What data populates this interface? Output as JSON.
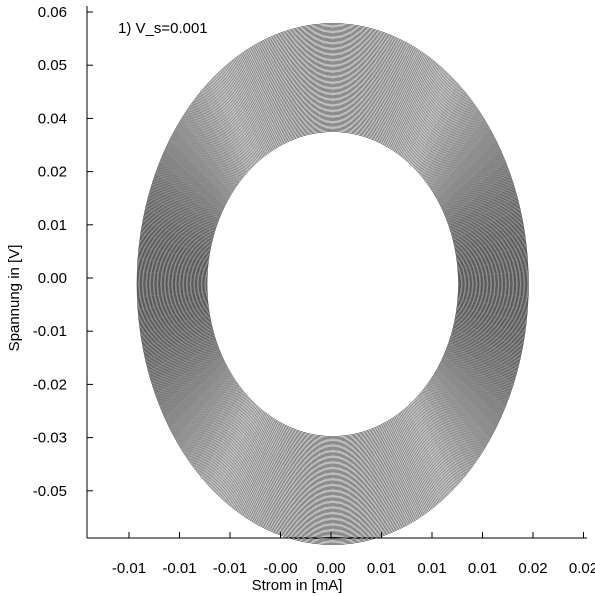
{
  "chart_data": {
    "type": "line",
    "annotation": "1) V_s=0.001",
    "xlabel": "Strom in [mA]",
    "ylabel": "Spannung in [V]",
    "x_tick_labels": [
      "-0.01",
      "-0.01",
      "-0.01",
      "-0.00",
      "0.00",
      "0.01",
      "0.01",
      "0.01",
      "0.02",
      "0.02"
    ],
    "y_tick_labels": [
      "0.06",
      "0.05",
      "0.04",
      "0.02",
      "0.01",
      "0.00",
      "-0.01",
      "-0.02",
      "-0.03",
      "-0.05"
    ],
    "xlim": [
      -0.0175,
      0.0175
    ],
    "ylim": [
      -0.0575,
      0.0625
    ],
    "grid": false,
    "line_color": "#000000",
    "series": [
      {
        "center": [
          -0.0003,
          0.0
        ],
        "outer_semi_axes": [
          0.0137,
          0.059
        ],
        "inner_semi_axes": [
          0.0088,
          0.0345
        ],
        "loop_count": 90
      }
    ]
  }
}
